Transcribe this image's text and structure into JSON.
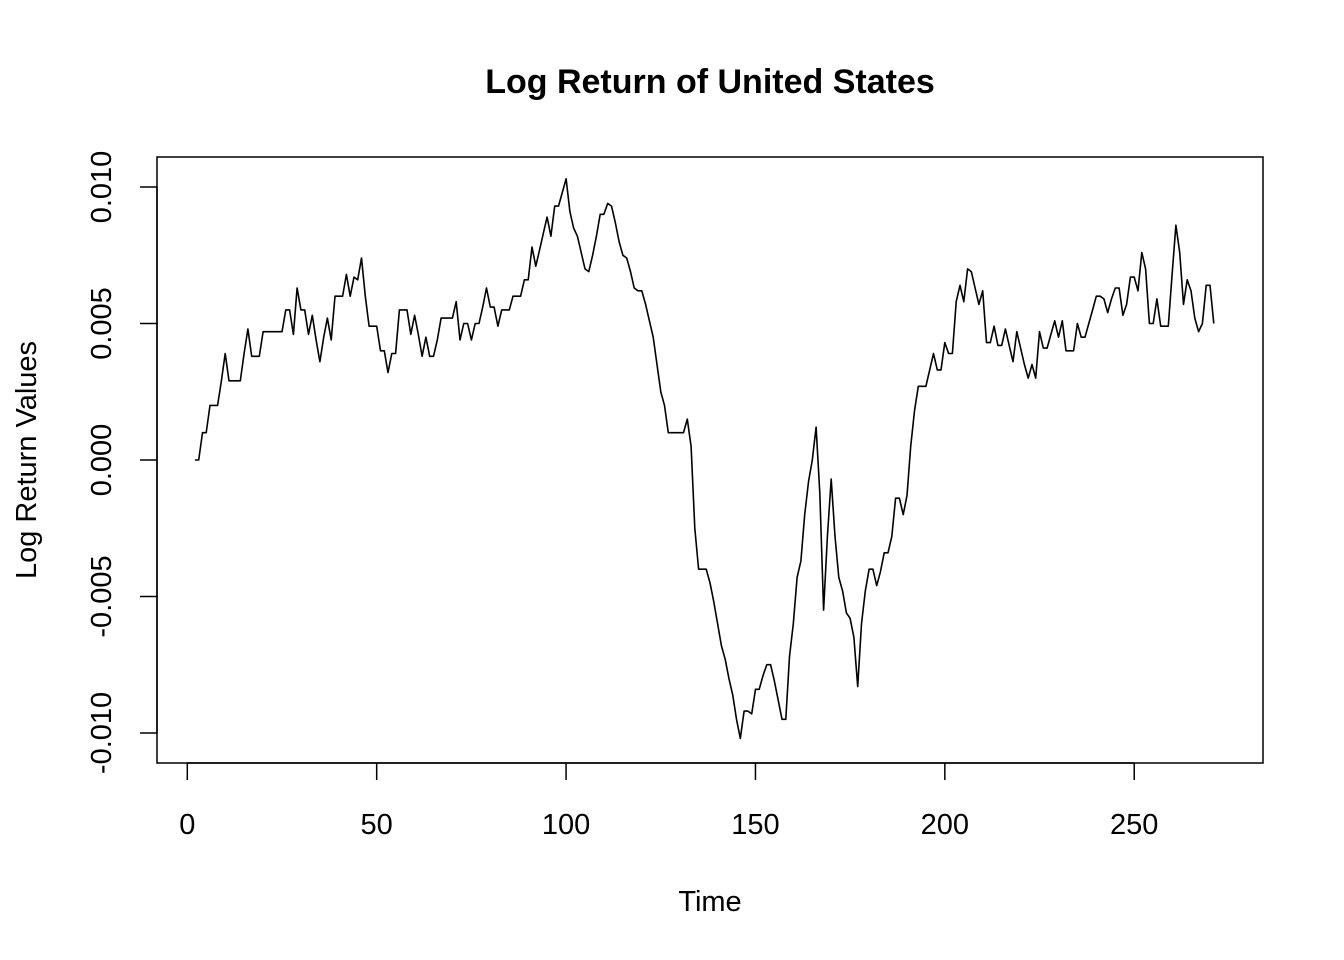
{
  "chart_data": {
    "type": "line",
    "title": "Log Return of United States",
    "xlabel": "Time",
    "ylabel": "Log Return Values",
    "xlim": [
      -8,
      284
    ],
    "ylim": [
      -0.0111,
      0.0111
    ],
    "x_ticks": [
      0,
      50,
      100,
      150,
      200,
      250
    ],
    "x_tick_labels": [
      "0",
      "50",
      "100",
      "150",
      "200",
      "250"
    ],
    "y_ticks": [
      -0.01,
      -0.005,
      0,
      0.005,
      0.01
    ],
    "y_tick_labels": [
      "-0.010",
      "-0.005",
      "0.000",
      "0.005",
      "0.010"
    ],
    "grid": false,
    "line_color": "#000000",
    "series": [
      {
        "points": [
          [
            2,
            0
          ],
          [
            3,
            0
          ],
          [
            4,
            0.001
          ],
          [
            5,
            0.001
          ],
          [
            6,
            0.002
          ],
          [
            7,
            0.002
          ],
          [
            8,
            0.002
          ],
          [
            9,
            0.0029
          ],
          [
            10,
            0.0039
          ],
          [
            11,
            0.0029
          ],
          [
            12,
            0.0029
          ],
          [
            13,
            0.0029
          ],
          [
            14,
            0.0029
          ],
          [
            15,
            0.0039
          ],
          [
            16,
            0.0048
          ],
          [
            17,
            0.0038
          ],
          [
            18,
            0.0038
          ],
          [
            19,
            0.0038
          ],
          [
            20,
            0.0047
          ],
          [
            23,
            0.0047
          ],
          [
            25,
            0.0047
          ],
          [
            26,
            0.0055
          ],
          [
            27,
            0.0055
          ],
          [
            28,
            0.0046
          ],
          [
            29,
            0.0063
          ],
          [
            30,
            0.0055
          ],
          [
            31,
            0.0055
          ],
          [
            32,
            0.0046
          ],
          [
            33,
            0.0053
          ],
          [
            34,
            0.0044
          ],
          [
            35,
            0.0036
          ],
          [
            36,
            0.0045
          ],
          [
            37,
            0.0052
          ],
          [
            38,
            0.0044
          ],
          [
            39,
            0.006
          ],
          [
            40,
            0.006
          ],
          [
            41,
            0.006
          ],
          [
            42,
            0.0068
          ],
          [
            43,
            0.006
          ],
          [
            44,
            0.0067
          ],
          [
            45,
            0.0066
          ],
          [
            46,
            0.0074
          ],
          [
            47,
            0.006
          ],
          [
            48,
            0.0049
          ],
          [
            49,
            0.0049
          ],
          [
            50,
            0.0049
          ],
          [
            51,
            0.004
          ],
          [
            52,
            0.004
          ],
          [
            53,
            0.0032
          ],
          [
            54,
            0.0039
          ],
          [
            55,
            0.0039
          ],
          [
            56,
            0.0055
          ],
          [
            57,
            0.0055
          ],
          [
            58,
            0.0055
          ],
          [
            59,
            0.0046
          ],
          [
            60,
            0.0053
          ],
          [
            61,
            0.0046
          ],
          [
            62,
            0.0038
          ],
          [
            63,
            0.0045
          ],
          [
            64,
            0.0038
          ],
          [
            65,
            0.0038
          ],
          [
            66,
            0.0044
          ],
          [
            67,
            0.0052
          ],
          [
            68,
            0.0052
          ],
          [
            69,
            0.0052
          ],
          [
            70,
            0.0052
          ],
          [
            71,
            0.0058
          ],
          [
            72,
            0.0044
          ],
          [
            73,
            0.005
          ],
          [
            74,
            0.005
          ],
          [
            75,
            0.0044
          ],
          [
            76,
            0.005
          ],
          [
            77,
            0.005
          ],
          [
            78,
            0.0056
          ],
          [
            79,
            0.0063
          ],
          [
            80,
            0.0056
          ],
          [
            81,
            0.0056
          ],
          [
            82,
            0.0049
          ],
          [
            83,
            0.0055
          ],
          [
            84,
            0.0055
          ],
          [
            85,
            0.0055
          ],
          [
            86,
            0.006
          ],
          [
            87,
            0.006
          ],
          [
            88,
            0.006
          ],
          [
            89,
            0.0066
          ],
          [
            90,
            0.0066
          ],
          [
            91,
            0.0078
          ],
          [
            92,
            0.0071
          ],
          [
            93,
            0.0077
          ],
          [
            94,
            0.0083
          ],
          [
            95,
            0.0089
          ],
          [
            96,
            0.0082
          ],
          [
            97,
            0.0093
          ],
          [
            98,
            0.0093
          ],
          [
            99,
            0.0098
          ],
          [
            100,
            0.0103
          ],
          [
            101,
            0.0091
          ],
          [
            102,
            0.0085
          ],
          [
            103,
            0.0082
          ],
          [
            104,
            0.0076
          ],
          [
            105,
            0.007
          ],
          [
            106,
            0.0069
          ],
          [
            107,
            0.0075
          ],
          [
            108,
            0.0082
          ],
          [
            109,
            0.009
          ],
          [
            110,
            0.009
          ],
          [
            111,
            0.0094
          ],
          [
            112,
            0.0093
          ],
          [
            113,
            0.0087
          ],
          [
            114,
            0.008
          ],
          [
            115,
            0.0075
          ],
          [
            116,
            0.0074
          ],
          [
            117,
            0.0069
          ],
          [
            118,
            0.0063
          ],
          [
            119,
            0.0062
          ],
          [
            120,
            0.0062
          ],
          [
            121,
            0.0057
          ],
          [
            122,
            0.0051
          ],
          [
            123,
            0.0045
          ],
          [
            124,
            0.0035
          ],
          [
            125,
            0.0025
          ],
          [
            126,
            0.002
          ],
          [
            127,
            0.001
          ],
          [
            128,
            0.001
          ],
          [
            129,
            0.001
          ],
          [
            130,
            0.001
          ],
          [
            131,
            0.001
          ],
          [
            132,
            0.0015
          ],
          [
            133,
            0.0005
          ],
          [
            134,
            -0.0025
          ],
          [
            135,
            -0.004
          ],
          [
            136,
            -0.004
          ],
          [
            137,
            -0.004
          ],
          [
            138,
            -0.0045
          ],
          [
            139,
            -0.0052
          ],
          [
            140,
            -0.006
          ],
          [
            141,
            -0.0068
          ],
          [
            142,
            -0.0073
          ],
          [
            143,
            -0.008
          ],
          [
            144,
            -0.0086
          ],
          [
            145,
            -0.0095
          ],
          [
            146,
            -0.0102
          ],
          [
            147,
            -0.0092
          ],
          [
            148,
            -0.0092
          ],
          [
            149,
            -0.0093
          ],
          [
            150,
            -0.0084
          ],
          [
            151,
            -0.0084
          ],
          [
            152,
            -0.0079
          ],
          [
            153,
            -0.0075
          ],
          [
            154,
            -0.0075
          ],
          [
            155,
            -0.0081
          ],
          [
            156,
            -0.0088
          ],
          [
            157,
            -0.0095
          ],
          [
            158,
            -0.0095
          ],
          [
            159,
            -0.0072
          ],
          [
            160,
            -0.006
          ],
          [
            161,
            -0.0043
          ],
          [
            162,
            -0.0037
          ],
          [
            163,
            -0.002
          ],
          [
            164,
            -0.0008
          ],
          [
            165,
            0
          ],
          [
            166,
            0.0012
          ],
          [
            167,
            -0.0012
          ],
          [
            168,
            -0.0055
          ],
          [
            169,
            -0.0028
          ],
          [
            170,
            -0.0007
          ],
          [
            171,
            -0.0028
          ],
          [
            172,
            -0.0043
          ],
          [
            173,
            -0.0048
          ],
          [
            174,
            -0.0056
          ],
          [
            175,
            -0.0058
          ],
          [
            176,
            -0.0065
          ],
          [
            177,
            -0.0083
          ],
          [
            178,
            -0.006
          ],
          [
            179,
            -0.0048
          ],
          [
            180,
            -0.004
          ],
          [
            181,
            -0.004
          ],
          [
            182,
            -0.0046
          ],
          [
            183,
            -0.0041
          ],
          [
            184,
            -0.0034
          ],
          [
            185,
            -0.0034
          ],
          [
            186,
            -0.0028
          ],
          [
            187,
            -0.0014
          ],
          [
            188,
            -0.0014
          ],
          [
            189,
            -0.002
          ],
          [
            190,
            -0.0013
          ],
          [
            191,
            0.0005
          ],
          [
            192,
            0.0018
          ],
          [
            193,
            0.0027
          ],
          [
            194,
            0.0027
          ],
          [
            195,
            0.0027
          ],
          [
            196,
            0.0033
          ],
          [
            197,
            0.0039
          ],
          [
            198,
            0.0033
          ],
          [
            199,
            0.0033
          ],
          [
            200,
            0.0043
          ],
          [
            201,
            0.0039
          ],
          [
            202,
            0.0039
          ],
          [
            203,
            0.0058
          ],
          [
            204,
            0.0064
          ],
          [
            205,
            0.0058
          ],
          [
            206,
            0.007
          ],
          [
            207,
            0.0069
          ],
          [
            208,
            0.0063
          ],
          [
            209,
            0.0057
          ],
          [
            210,
            0.0062
          ],
          [
            211,
            0.0043
          ],
          [
            212,
            0.0043
          ],
          [
            213,
            0.0049
          ],
          [
            214,
            0.0042
          ],
          [
            215,
            0.0042
          ],
          [
            216,
            0.0048
          ],
          [
            217,
            0.0042
          ],
          [
            218,
            0.0036
          ],
          [
            219,
            0.0047
          ],
          [
            220,
            0.0041
          ],
          [
            221,
            0.0035
          ],
          [
            222,
            0.003
          ],
          [
            223,
            0.0035
          ],
          [
            224,
            0.003
          ],
          [
            225,
            0.0047
          ],
          [
            226,
            0.0041
          ],
          [
            227,
            0.0041
          ],
          [
            228,
            0.0046
          ],
          [
            229,
            0.0051
          ],
          [
            230,
            0.0045
          ],
          [
            231,
            0.0051
          ],
          [
            232,
            0.004
          ],
          [
            233,
            0.004
          ],
          [
            234,
            0.004
          ],
          [
            235,
            0.005
          ],
          [
            236,
            0.0045
          ],
          [
            237,
            0.0045
          ],
          [
            238,
            0.005
          ],
          [
            239,
            0.0055
          ],
          [
            240,
            0.006
          ],
          [
            241,
            0.006
          ],
          [
            242,
            0.0059
          ],
          [
            243,
            0.0054
          ],
          [
            244,
            0.0059
          ],
          [
            245,
            0.0063
          ],
          [
            246,
            0.0063
          ],
          [
            247,
            0.0053
          ],
          [
            248,
            0.0057
          ],
          [
            249,
            0.0067
          ],
          [
            250,
            0.0067
          ],
          [
            251,
            0.0062
          ],
          [
            252,
            0.0076
          ],
          [
            253,
            0.007
          ],
          [
            254,
            0.005
          ],
          [
            255,
            0.005
          ],
          [
            256,
            0.0059
          ],
          [
            257,
            0.0049
          ],
          [
            258,
            0.0049
          ],
          [
            259,
            0.0049
          ],
          [
            260,
            0.0068
          ],
          [
            261,
            0.0086
          ],
          [
            262,
            0.0076
          ],
          [
            263,
            0.0057
          ],
          [
            264,
            0.0066
          ],
          [
            265,
            0.0062
          ],
          [
            266,
            0.0052
          ],
          [
            267,
            0.0047
          ],
          [
            268,
            0.005
          ],
          [
            269,
            0.0064
          ],
          [
            270,
            0.0064
          ],
          [
            271,
            0.005
          ]
        ]
      }
    ]
  }
}
